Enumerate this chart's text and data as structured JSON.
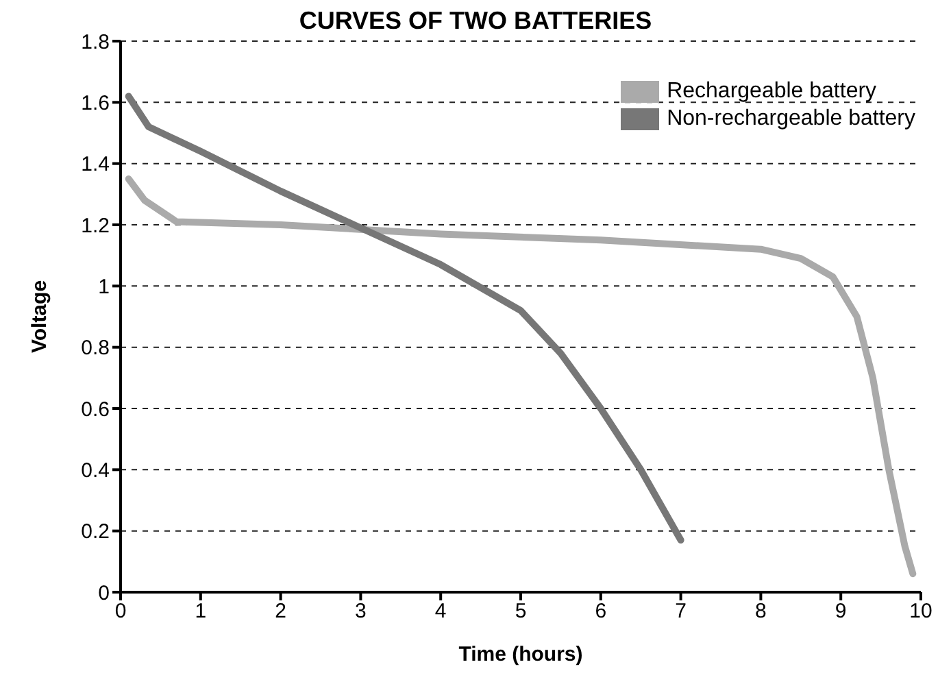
{
  "chart_data": {
    "type": "line",
    "title": "CURVES OF TWO BATTERIES",
    "xlabel": "Time (hours)",
    "ylabel": "Voltage",
    "xlim": [
      0,
      10
    ],
    "xticks": [
      0,
      1,
      2,
      3,
      4,
      5,
      6,
      7,
      8,
      9,
      10
    ],
    "ylim": [
      0,
      1.8
    ],
    "yticks": [
      0,
      0.2,
      0.4,
      0.6,
      0.8,
      1,
      1.2,
      1.4,
      1.6,
      1.8
    ],
    "grid": "y",
    "legend": "top right",
    "line_style": "solid",
    "marker": "none",
    "series": [
      {
        "name": "Rechargeable battery",
        "color": "#aaaaaa",
        "x": [
          0.1,
          0.3,
          0.7,
          2,
          4,
          6,
          8,
          8.5,
          8.9,
          9.2,
          9.4,
          9.6,
          9.8,
          9.9
        ],
        "values": [
          1.35,
          1.28,
          1.21,
          1.2,
          1.17,
          1.15,
          1.12,
          1.09,
          1.03,
          0.9,
          0.7,
          0.4,
          0.15,
          0.06
        ]
      },
      {
        "name": "Non-rechargeable battery",
        "color": "#777777",
        "x": [
          0.1,
          0.35,
          1,
          2,
          3,
          4,
          5,
          5.5,
          6,
          6.5,
          7
        ],
        "values": [
          1.62,
          1.52,
          1.44,
          1.31,
          1.19,
          1.07,
          0.92,
          0.78,
          0.6,
          0.4,
          0.17
        ]
      }
    ]
  }
}
